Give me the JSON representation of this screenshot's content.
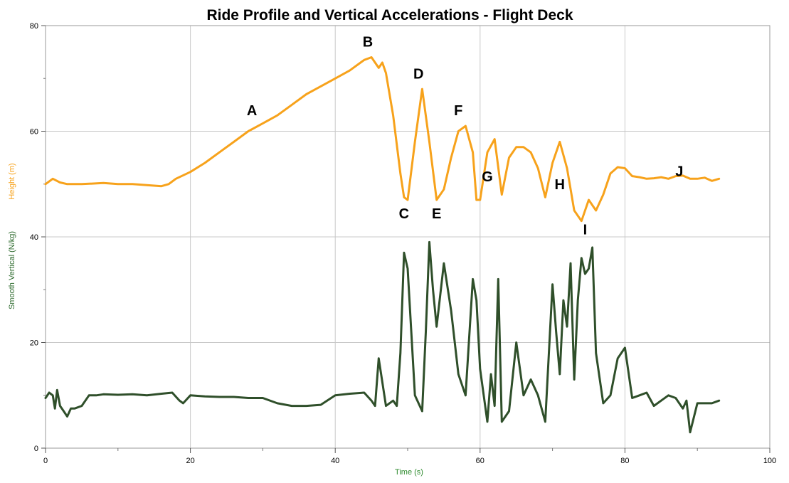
{
  "chart_data": {
    "type": "line",
    "title": "Ride Profile and Vertical Accelerations - Flight Deck",
    "xlabel": "Time (s)",
    "ylabels": [
      "Smooth Vertical (N/kg)",
      "Height (m)"
    ],
    "xlim": [
      0,
      100
    ],
    "ylim": [
      0,
      80
    ],
    "x_ticks": [
      "0",
      "20",
      "40",
      "60",
      "80",
      "100"
    ],
    "y_ticks": [
      "0",
      "20",
      "40",
      "60",
      "80"
    ],
    "grid": true,
    "colors": {
      "height": "#F7A21B",
      "vertical": "#2F4F2A",
      "ylabel_height": "#F7A21B",
      "ylabel_vertical": "#2E6B2E",
      "xlabel": "#2E8B2E",
      "grid": "#C8C8C8"
    },
    "series": [
      {
        "name": "Height (m)",
        "x": [
          0,
          1,
          2,
          3,
          5,
          8,
          10,
          12,
          14,
          16,
          17,
          18,
          20,
          22,
          24,
          26,
          28,
          30,
          32,
          34,
          36,
          38,
          40,
          42,
          44,
          45,
          46,
          46.5,
          47,
          48,
          49,
          49.5,
          50,
          51,
          52,
          53,
          54,
          55,
          56,
          57,
          58,
          59,
          59.5,
          60,
          61,
          62,
          63,
          64,
          65,
          66,
          67,
          68,
          69,
          70,
          71,
          72,
          73,
          74,
          75,
          76,
          77,
          78,
          79,
          80,
          81,
          82,
          83,
          84,
          85,
          86,
          87,
          88,
          89,
          90,
          91,
          92,
          93
        ],
        "values": [
          50,
          51,
          50.3,
          50,
          50,
          50.2,
          50,
          50,
          49.8,
          49.6,
          50,
          51,
          52.3,
          54,
          56,
          58,
          60,
          61.5,
          63,
          65,
          67,
          68.5,
          70,
          71.5,
          73.5,
          74,
          72,
          73,
          71,
          63,
          52,
          47.5,
          47,
          58,
          68,
          58,
          47,
          49,
          55,
          60,
          61,
          56,
          47,
          47,
          56,
          58.5,
          48,
          55,
          57,
          57,
          56,
          53,
          47.5,
          54,
          58,
          53,
          45,
          43,
          47,
          45,
          48,
          52,
          53.2,
          53,
          51.5,
          51.3,
          51,
          51.1,
          51.3,
          51,
          51.5,
          51.6,
          51,
          51,
          51.2,
          50.6,
          51
        ]
      },
      {
        "name": "Smooth Vertical (N/kg)",
        "x": [
          0,
          0.5,
          1,
          1.3,
          1.6,
          2,
          2.5,
          3,
          3.5,
          4,
          5,
          6,
          7,
          8,
          10,
          12,
          14,
          16,
          17.5,
          18.5,
          19,
          20,
          22,
          24,
          26,
          28,
          30,
          32,
          34,
          36,
          38,
          40,
          42,
          44,
          45,
          45.5,
          46,
          47,
          48,
          48.5,
          49,
          49.5,
          50,
          51,
          52,
          52.5,
          53,
          53.5,
          54,
          55,
          56,
          57,
          58,
          59,
          59.5,
          60,
          61,
          61.5,
          62,
          62.5,
          63,
          64,
          65,
          66,
          67,
          68,
          69,
          70,
          70.5,
          71,
          71.5,
          72,
          72.5,
          73,
          73.5,
          74,
          74.5,
          75,
          75.5,
          76,
          77,
          78,
          79,
          80,
          81,
          82,
          83,
          84,
          85,
          86,
          87,
          88,
          88.5,
          89,
          90,
          91,
          92,
          93
        ],
        "values": [
          9.5,
          10.5,
          10,
          7.5,
          11,
          8,
          7,
          6,
          7.5,
          7.5,
          8,
          10,
          10,
          10.2,
          10.1,
          10.2,
          10,
          10.3,
          10.5,
          9,
          8.5,
          10,
          9.8,
          9.7,
          9.7,
          9.5,
          9.5,
          8.5,
          8,
          8,
          8.2,
          10,
          10.3,
          10.5,
          9,
          8,
          17,
          8,
          9,
          8,
          18,
          37,
          34,
          10,
          7,
          22,
          39,
          30,
          23,
          35,
          26,
          14,
          10,
          32,
          28,
          15,
          5,
          14,
          8,
          32,
          5,
          7,
          20,
          10,
          13,
          10,
          5,
          31,
          22,
          14,
          28,
          23,
          35,
          13,
          28,
          36,
          33,
          34,
          38,
          18,
          8.5,
          10,
          17,
          19,
          9.5,
          10,
          10.5,
          8,
          9,
          10,
          9.5,
          7.5,
          9,
          3,
          8.5,
          8.5,
          8.5,
          9
        ],
        "points_hint": "estimated"
      }
    ],
    "annotations": [
      {
        "label": "A",
        "x": 28.5,
        "y": 63
      },
      {
        "label": "B",
        "x": 44.5,
        "y": 76
      },
      {
        "label": "C",
        "x": 49.5,
        "y": 43.5
      },
      {
        "label": "D",
        "x": 51.5,
        "y": 70
      },
      {
        "label": "E",
        "x": 54,
        "y": 43.5
      },
      {
        "label": "F",
        "x": 57,
        "y": 63
      },
      {
        "label": "G",
        "x": 61,
        "y": 50.5
      },
      {
        "label": "H",
        "x": 71,
        "y": 49
      },
      {
        "label": "I",
        "x": 74.5,
        "y": 40.5
      },
      {
        "label": "J",
        "x": 87.5,
        "y": 51.5
      }
    ]
  }
}
